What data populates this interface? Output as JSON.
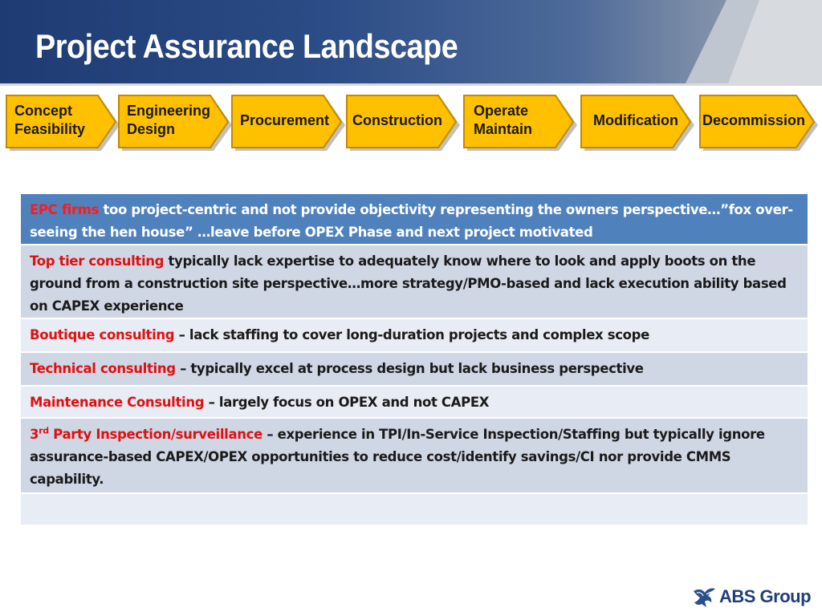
{
  "slide": {
    "title": "Project Assurance Landscape"
  },
  "phases": [
    {
      "label": "Concept\nFeasibility"
    },
    {
      "label": "Engineering\nDesign"
    },
    {
      "label": "Procurement"
    },
    {
      "label": "Construction"
    },
    {
      "label": "Operate\nMaintain"
    },
    {
      "label": "Modification"
    },
    {
      "label": "Decommission"
    }
  ],
  "colors": {
    "chevron_fill": "#ffc000",
    "chevron_border": "#c08a00",
    "header_row": "#4f81bd",
    "row_dark": "#cfd7e5",
    "row_light": "#e8ecf4",
    "highlight_red": "#e01010",
    "banner_blue": "#1f3b73"
  },
  "table": {
    "rows": [
      {
        "lead": "EPC firms",
        "text": " too project-centric and not provide objectivity representing the owners perspective…”fox over-seeing the hen house” …leave before OPEX Phase and next project motivated"
      },
      {
        "lead": "Top tier consulting",
        "text": " typically lack expertise to adequately know where to look and apply boots on the ground from a construction site perspective…more strategy/PMO-based and lack execution ability based on CAPEX experience"
      },
      {
        "lead": "Boutique consulting",
        "text": " – lack staffing to cover long-duration projects and complex scope"
      },
      {
        "lead": "Technical consulting",
        "text": " – typically excel at process design but lack business perspective"
      },
      {
        "lead": "Maintenance Consulting",
        "text": " – largely focus on OPEX and not CAPEX"
      },
      {
        "lead_prefix": "3",
        "lead_sup": "rd",
        "lead": " Party Inspection/surveillance",
        "text": " – experience in TPI/In-Service Inspection/Staffing  but typically ignore assurance-based CAPEX/OPEX opportunities to reduce cost/identify savings/CI nor provide CMMS capability."
      },
      {
        "lead": "",
        "text": ""
      }
    ]
  },
  "logo": {
    "text": "ABS Group",
    "icon": "eagle-icon"
  }
}
